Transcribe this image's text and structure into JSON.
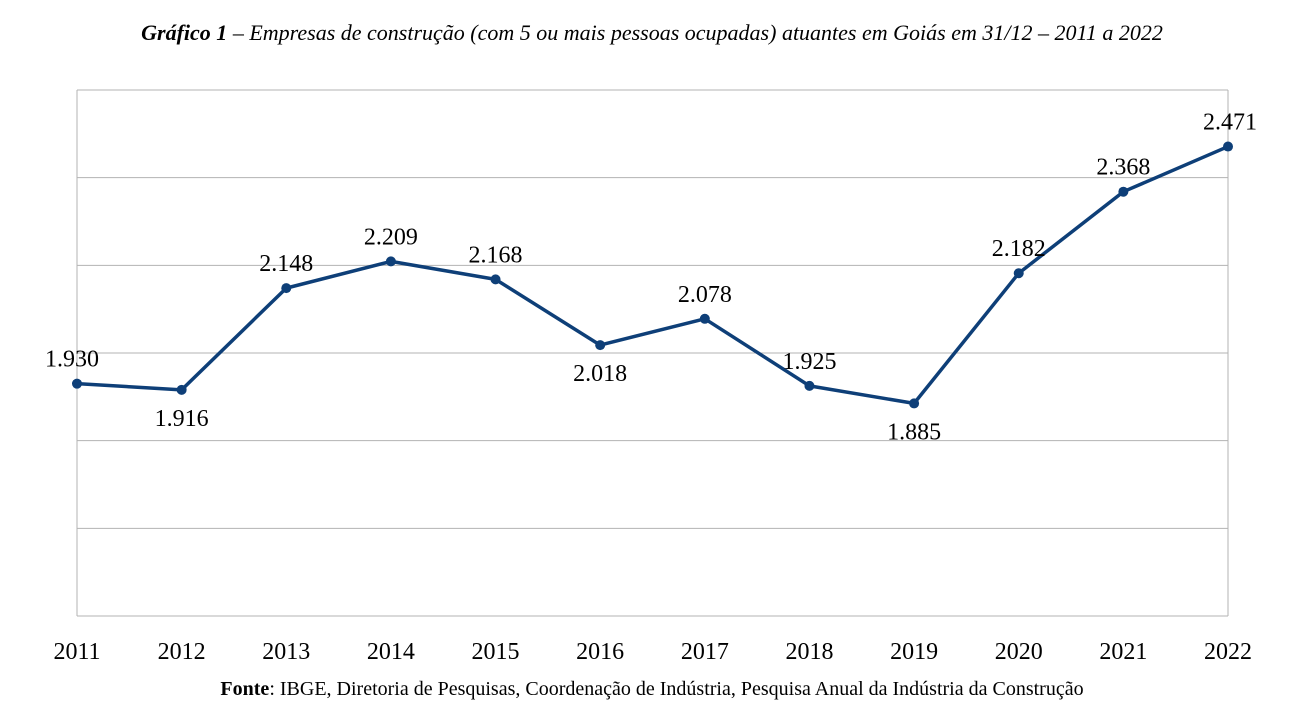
{
  "chart_data": {
    "type": "line",
    "title_lead": "Gráfico 1",
    "title_rest": " – Empresas de construção (com 5 ou mais pessoas ocupadas) atuantes em Goiás em 31/12 – 2011 a 2022",
    "categories": [
      "2011",
      "2012",
      "2013",
      "2014",
      "2015",
      "2016",
      "2017",
      "2018",
      "2019",
      "2020",
      "2021",
      "2022"
    ],
    "values": [
      1930,
      1916,
      2148,
      2209,
      2168,
      2018,
      2078,
      1925,
      1885,
      2182,
      2368,
      2471
    ],
    "data_labels": [
      "1.930",
      "1.916",
      "2.148",
      "2.209",
      "2.168",
      "2.018",
      "2.078",
      "1.925",
      "1.885",
      "2.182",
      "2.368",
      "2.471"
    ],
    "xlabel": "",
    "ylabel": "",
    "ylim": [
      1400,
      2600
    ],
    "grid": true,
    "y_tick_labels_shown": false,
    "line_color": "#0e3f78",
    "grid_color": "#b3b3b3"
  },
  "source": {
    "lead": "Fonte",
    "text": ": IBGE, Diretoria de Pesquisas, Coordenação de Indústria, Pesquisa Anual da Indústria da Construção"
  }
}
